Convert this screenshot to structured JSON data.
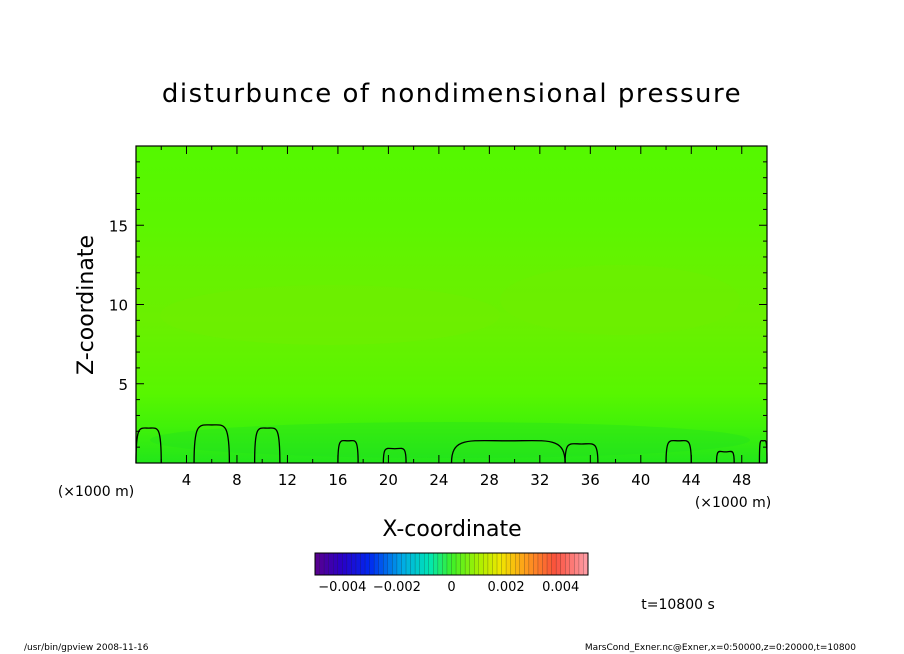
{
  "chart_data": {
    "type": "heatmap",
    "title": "disturbunce of nondimensional pressure",
    "xlabel": "X-coordinate",
    "ylabel": "Z-coordinate",
    "x_unit": "(×1000 m)",
    "y_unit": "(×1000 m)",
    "xlim": [
      0,
      50
    ],
    "ylim": [
      0,
      20
    ],
    "x_ticks": [
      "4",
      "8",
      "12",
      "16",
      "20",
      "24",
      "28",
      "32",
      "36",
      "40",
      "44",
      "48"
    ],
    "y_ticks": [
      "5",
      "10",
      "15"
    ],
    "x_tick_values": [
      4,
      8,
      12,
      16,
      20,
      24,
      28,
      32,
      36,
      40,
      44,
      48
    ],
    "y_tick_values": [
      5,
      10,
      15
    ],
    "colorbar": {
      "range": [
        -0.005,
        0.005
      ],
      "tick_labels": [
        "−0.004",
        "−0.002",
        "0",
        "0.002",
        "0.004"
      ],
      "tick_values": [
        -0.004,
        -0.002,
        0,
        0.002,
        0.004
      ]
    },
    "field_description_values": {
      "dominant_value": 0.0,
      "near_surface_value": -0.0002,
      "mid_level_value": 0.0001
    },
    "contour_zero_bumps": [
      {
        "x_start": 0.0,
        "x_end": 2.0,
        "z_peak": 2.2
      },
      {
        "x_start": 4.6,
        "x_end": 7.4,
        "z_peak": 2.4
      },
      {
        "x_start": 9.4,
        "x_end": 11.4,
        "z_peak": 2.2
      },
      {
        "x_start": 16.0,
        "x_end": 17.6,
        "z_peak": 1.4
      },
      {
        "x_start": 19.6,
        "x_end": 21.4,
        "z_peak": 0.9
      },
      {
        "x_start": 25.0,
        "x_end": 34.0,
        "z_peak": 1.4
      },
      {
        "x_start": 34.0,
        "x_end": 36.6,
        "z_peak": 1.2
      },
      {
        "x_start": 42.0,
        "x_end": 44.0,
        "z_peak": 1.4
      },
      {
        "x_start": 46.0,
        "x_end": 47.4,
        "z_peak": 0.7
      },
      {
        "x_start": 49.4,
        "x_end": 50.0,
        "z_peak": 1.4
      }
    ]
  },
  "time_label": "t=10800 s",
  "footer_left": "/usr/bin/gpview   2008-11-16",
  "footer_right": "MarsCond_Exner.nc@Exner,x=0:50000,z=0:20000,t=10800"
}
